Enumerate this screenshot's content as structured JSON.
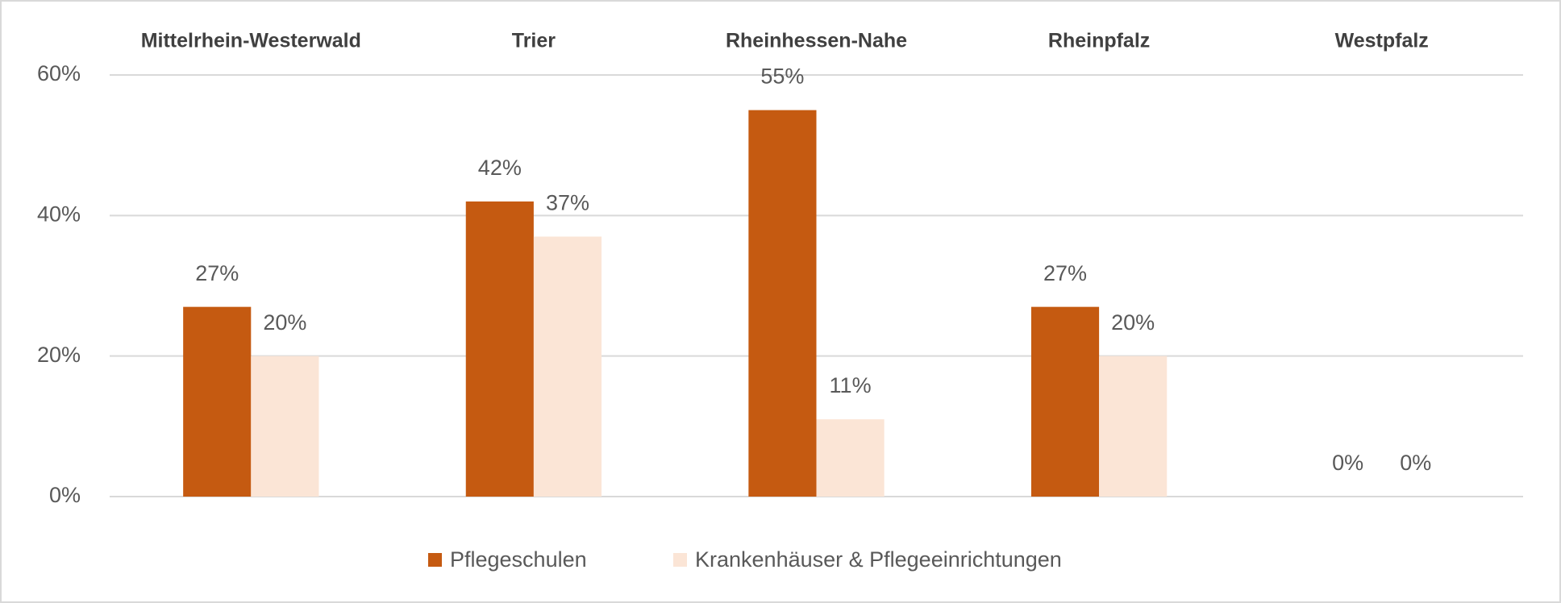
{
  "chart_data": {
    "type": "bar",
    "categories": [
      "Mittelrhein-Westerwald",
      "Trier",
      "Rheinhessen-Nahe",
      "Rheinpfalz",
      "Westpfalz"
    ],
    "series": [
      {
        "name": "Pflegeschulen",
        "color": "#c55a11",
        "values": [
          27,
          42,
          55,
          27,
          0
        ],
        "value_labels": [
          "27%",
          "42%",
          "55%",
          "27%",
          "0%"
        ]
      },
      {
        "name": "Krankenhäuser & Pflegeeinrichtungen",
        "color": "#fbe5d6",
        "values": [
          20,
          37,
          11,
          20,
          0
        ],
        "value_labels": [
          "20%",
          "37%",
          "11%",
          "20%",
          "0%"
        ]
      }
    ],
    "ylim": [
      0,
      60
    ],
    "yticks": [
      {
        "value": 0,
        "label": "0%"
      },
      {
        "value": 20,
        "label": "20%"
      },
      {
        "value": 40,
        "label": "40%"
      },
      {
        "value": 60,
        "label": "60%"
      }
    ],
    "grid": true,
    "legend": "bottom"
  }
}
